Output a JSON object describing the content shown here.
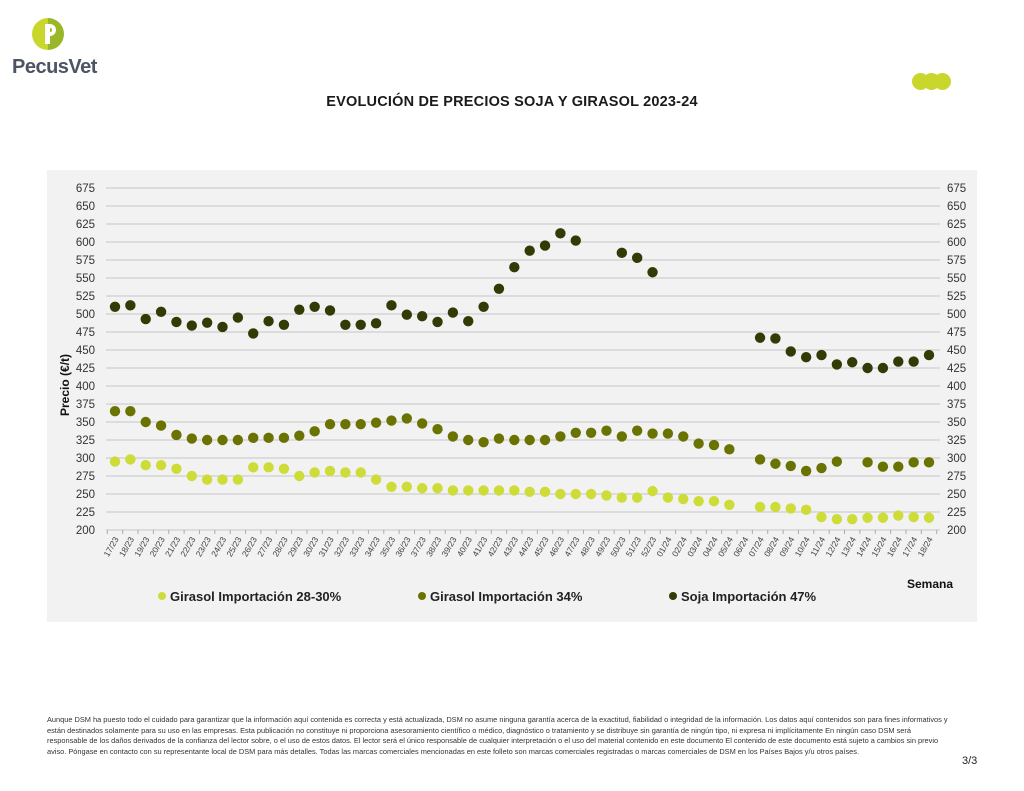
{
  "brand": {
    "logo_text": "PecusVet",
    "logo_colors": [
      "#c9d72d",
      "#9ab72a"
    ],
    "decoration_dots_color": "#c9d72d"
  },
  "page": {
    "title": "EVOLUCIÓN DE PRECIOS SOJA Y GIRASOL 2023-24",
    "page_number": "3/3",
    "disclaimer": "Aunque DSM ha puesto todo el cuidado para garantizar que la información aquí contenida es correcta y está actualizada, DSM no asume ninguna garantía acerca de la exactitud, fiabilidad o integridad de la información. Los datos aquí contenidos son para fines informativos y están destinados solamente para su uso en las empresas. Esta publicación no constituye ni proporciona asesoramiento científico o médico, diagnóstico o tratamiento y se distribuye sin garantía de ningún tipo, ni expresa ni implícitamente En ningún caso DSM será responsable de los daños derivados de la confianza del lector sobre, o el uso de estos datos. El lector será el único responsable de cualquier interpretación o el uso del material contenido en este documento El contenido de este documento está sujeto a cambios sin previo aviso. Póngase en contacto con su representante local de DSM para más detalles. Todas las marcas comerciales mencionadas en este folleto son marcas comerciales registradas o marcas comerciales de DSM en los Países Bajos y/u otros países."
  },
  "chart_data": {
    "type": "scatter",
    "title": "EVOLUCIÓN DE PRECIOS SOJA Y GIRASOL 2023-24",
    "xlabel": "Semana",
    "ylabel": "Precio (€/t)",
    "ylim": [
      200,
      675
    ],
    "yticks": [
      200,
      225,
      250,
      275,
      300,
      325,
      350,
      375,
      400,
      425,
      450,
      475,
      500,
      525,
      550,
      575,
      600,
      625,
      650,
      675
    ],
    "secondary_yaxis": true,
    "grid": "horizontal",
    "legend_position": "bottom",
    "background": "#f2f2f2",
    "categories": [
      "17/23",
      "18/23",
      "19/23",
      "20/23",
      "21/23",
      "22/23",
      "23/23",
      "24/23",
      "25/23",
      "26/23",
      "27/23",
      "28/23",
      "29/23",
      "30/23",
      "31/23",
      "32/23",
      "33/23",
      "34/23",
      "35/23",
      "36/23",
      "37/23",
      "38/23",
      "39/23",
      "40/23",
      "41/23",
      "42/23",
      "43/23",
      "44/23",
      "45/23",
      "46/23",
      "47/23",
      "48/23",
      "49/23",
      "50/23",
      "51/23",
      "52/23",
      "01/24",
      "02/24",
      "03/24",
      "04/24",
      "05/24",
      "06/24",
      "07/24",
      "08/24",
      "09/24",
      "10/24",
      "11/24",
      "12/24",
      "13/24",
      "14/24",
      "15/24",
      "16/24",
      "17/24",
      "18/24"
    ],
    "series": [
      {
        "name": "Girasol Importación 28-30%",
        "color": "#cddc39",
        "values": [
          295,
          298,
          290,
          290,
          285,
          275,
          270,
          270,
          270,
          287,
          287,
          285,
          275,
          280,
          282,
          280,
          280,
          270,
          260,
          260,
          258,
          258,
          255,
          255,
          255,
          255,
          255,
          253,
          253,
          250,
          250,
          250,
          248,
          245,
          245,
          254,
          245,
          243,
          240,
          240,
          235,
          null,
          232,
          232,
          230,
          228,
          218,
          215,
          215,
          217,
          217,
          220,
          218,
          217
        ]
      },
      {
        "name": "Girasol Importación 34%",
        "color": "#6b7300",
        "values": [
          365,
          365,
          350,
          345,
          332,
          327,
          325,
          325,
          325,
          328,
          328,
          328,
          331,
          337,
          347,
          347,
          347,
          349,
          352,
          355,
          348,
          340,
          330,
          325,
          322,
          327,
          325,
          325,
          325,
          330,
          335,
          335,
          338,
          330,
          338,
          334,
          334,
          330,
          320,
          318,
          312,
          null,
          298,
          292,
          289,
          282,
          286,
          295,
          null,
          294,
          288,
          288,
          294,
          294
        ]
      },
      {
        "name": "Soja Importación 47%",
        "color": "#333a06",
        "values": [
          510,
          512,
          493,
          503,
          489,
          484,
          488,
          482,
          495,
          473,
          490,
          485,
          506,
          510,
          505,
          485,
          485,
          487,
          512,
          499,
          497,
          489,
          502,
          490,
          510,
          535,
          565,
          588,
          595,
          612,
          602,
          null,
          null,
          585,
          578,
          558,
          null,
          null,
          null,
          null,
          null,
          null,
          467,
          466,
          448,
          440,
          443,
          430,
          433,
          425,
          425,
          434,
          434,
          443
        ]
      }
    ]
  }
}
